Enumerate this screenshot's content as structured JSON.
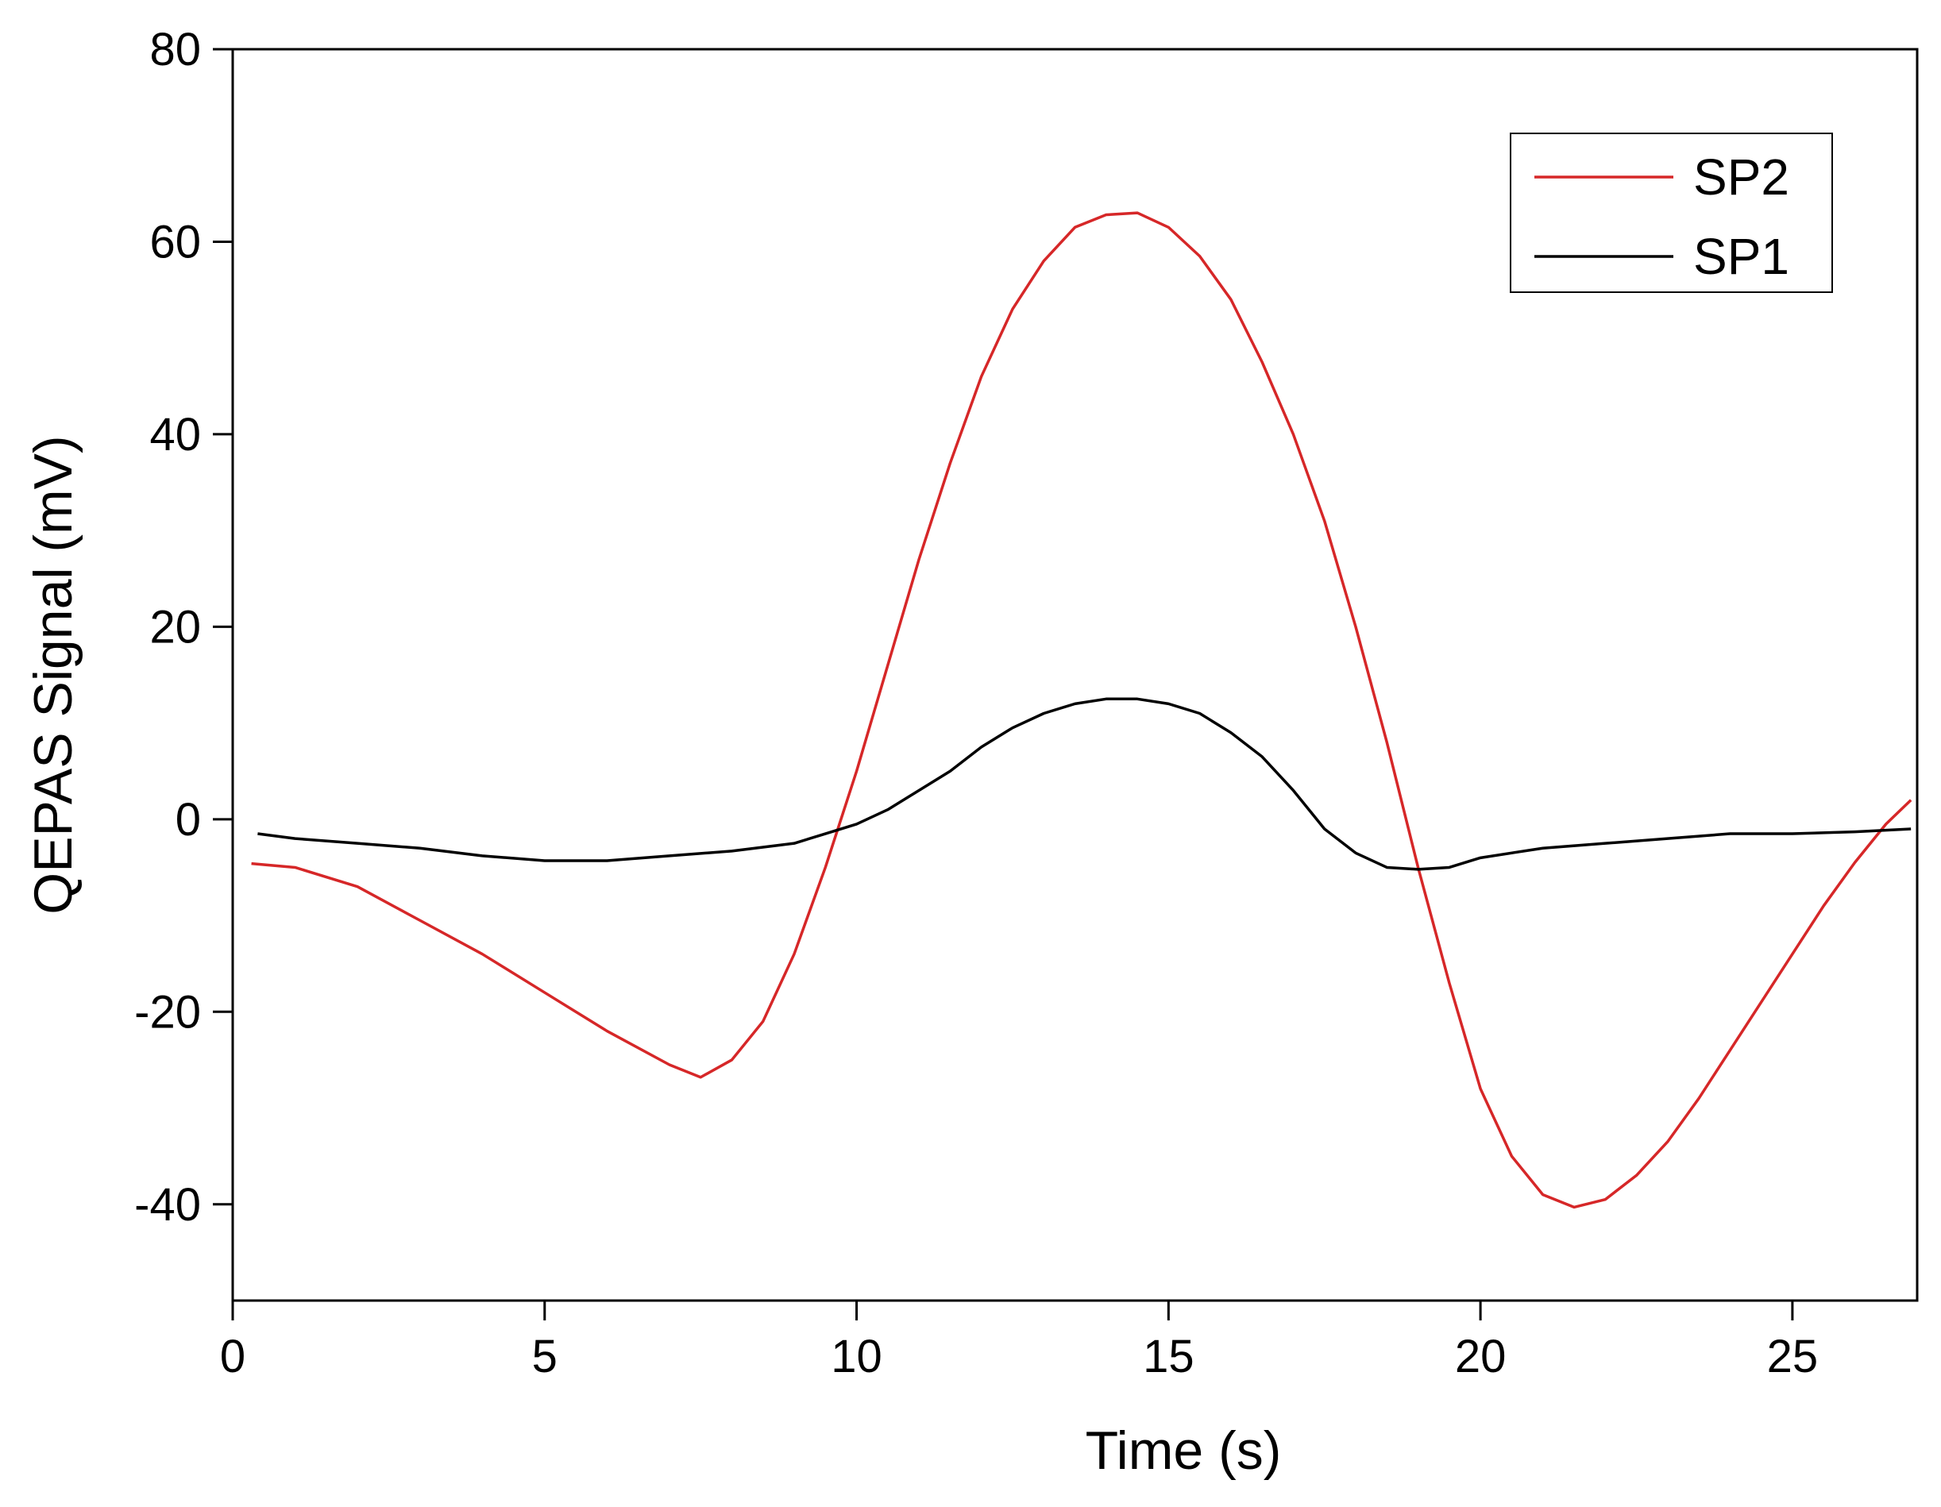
{
  "chart_data": {
    "type": "line",
    "xlabel": "Time (s)",
    "ylabel": "QEPAS Signal (mV)",
    "xlim": [
      0,
      27
    ],
    "xticks": [
      0,
      5,
      10,
      15,
      20,
      25
    ],
    "ylim": [
      -50,
      80
    ],
    "yticks": [
      -40,
      -20,
      0,
      20,
      40,
      60,
      80
    ],
    "legend": "upper right",
    "series": [
      {
        "name": "SP2",
        "color": "#d62728",
        "x": [
          0.3,
          1,
          2,
          3,
          4,
          5,
          6,
          7,
          7.5,
          8,
          8.5,
          9,
          9.5,
          10,
          10.5,
          11,
          11.5,
          12,
          12.5,
          13,
          13.5,
          14,
          14.5,
          15,
          15.5,
          16,
          16.5,
          17,
          17.5,
          18,
          18.5,
          19,
          19.5,
          20,
          20.5,
          21,
          21.5,
          22,
          22.5,
          23,
          23.5,
          24,
          24.5,
          25,
          25.5,
          26,
          26.5,
          26.9
        ],
        "values": [
          -4.6,
          -5,
          -7,
          -10.5,
          -14,
          -18,
          -22,
          -25.5,
          -26.8,
          -25,
          -21,
          -14,
          -5,
          5,
          16,
          27,
          37,
          46,
          53,
          58,
          61.5,
          62.8,
          63,
          61.5,
          58.5,
          54,
          47.5,
          40,
          31,
          20,
          8,
          -5,
          -17,
          -28,
          -35,
          -39,
          -40.3,
          -39.5,
          -37,
          -33.5,
          -29,
          -24,
          -19,
          -14,
          -9,
          -4.5,
          -0.5,
          2
        ]
      },
      {
        "name": "SP1",
        "color": "#000000",
        "x": [
          0.4,
          1,
          2,
          3,
          4,
          5,
          6,
          7,
          8,
          9,
          9.5,
          10,
          10.5,
          11,
          11.5,
          12,
          12.5,
          13,
          13.5,
          14,
          14.5,
          15,
          15.5,
          16,
          16.5,
          17,
          17.5,
          18,
          18.5,
          19,
          19.5,
          20,
          21,
          22,
          23,
          24,
          25,
          26,
          26.9
        ],
        "values": [
          -1.5,
          -2,
          -2.5,
          -3,
          -3.8,
          -4.3,
          -4.3,
          -3.8,
          -3.3,
          -2.5,
          -1.5,
          -0.5,
          1,
          3,
          5,
          7.5,
          9.5,
          11,
          12,
          12.5,
          12.5,
          12,
          11,
          9,
          6.5,
          3,
          -1,
          -3.5,
          -5,
          -5.2,
          -5,
          -4,
          -3,
          -2.5,
          -2,
          -1.5,
          -1.5,
          -1.3,
          -1
        ]
      }
    ]
  }
}
